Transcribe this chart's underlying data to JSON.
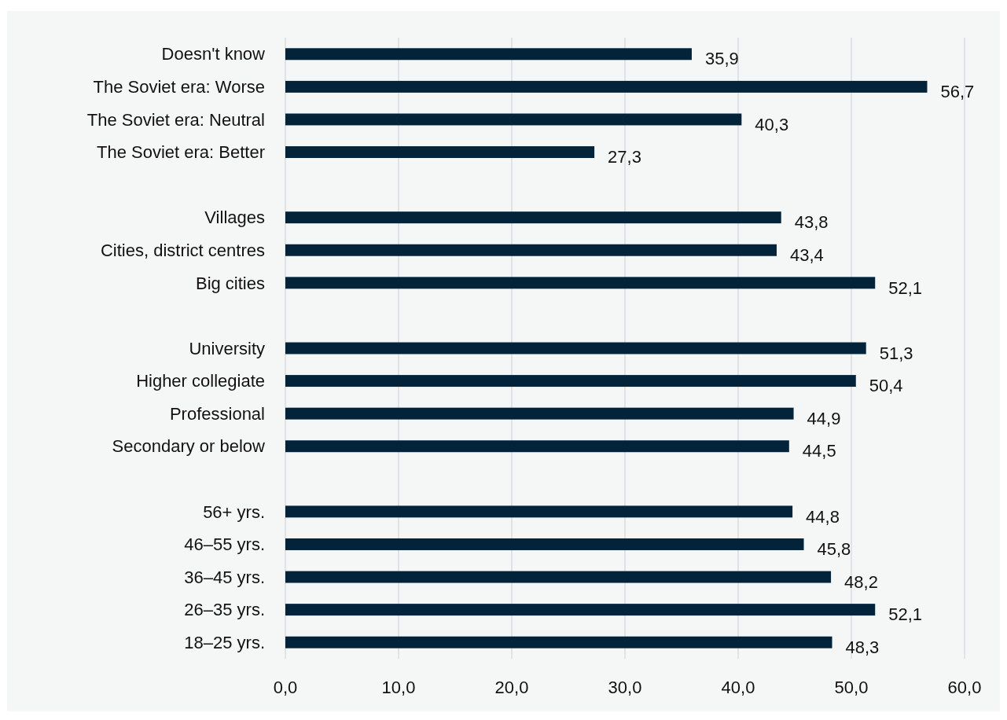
{
  "chart_data": {
    "type": "bar",
    "orientation": "horizontal",
    "categories": [
      "Doesn't know",
      "The Soviet era: Worse",
      "The Soviet era: Neutral",
      "The Soviet era: Better",
      null,
      "Villages",
      "Cities, district centres",
      "Big cities",
      null,
      "University",
      "Higher collegiate",
      "Professional",
      "Secondary or below",
      null,
      "56+ yrs.",
      "46–55 yrs.",
      "36–45 yrs.",
      "26–35 yrs.",
      "18–25 yrs."
    ],
    "values": [
      35.9,
      56.7,
      40.3,
      27.3,
      null,
      43.8,
      43.4,
      52.1,
      null,
      51.3,
      50.4,
      44.9,
      44.5,
      null,
      44.8,
      45.8,
      48.2,
      52.1,
      48.3
    ],
    "value_labels": [
      "35,9",
      "56,7",
      "40,3",
      "27,3",
      null,
      "43,8",
      "43,4",
      "52,1",
      null,
      "51,3",
      "50,4",
      "44,9",
      "44,5",
      null,
      "44,8",
      "45,8",
      "48,2",
      "52,1",
      "48,3"
    ],
    "color": "#03233a",
    "xlim": [
      0,
      60
    ],
    "xticks": [
      {
        "value": 0,
        "label": "0,0"
      },
      {
        "value": 10,
        "label": "10,0"
      },
      {
        "value": 20,
        "label": "20,0"
      },
      {
        "value": 30,
        "label": "30,0"
      },
      {
        "value": 40,
        "label": "40,0"
      },
      {
        "value": 50,
        "label": "50,0"
      },
      {
        "value": 60,
        "label": "60,0"
      }
    ],
    "grid": "x"
  }
}
